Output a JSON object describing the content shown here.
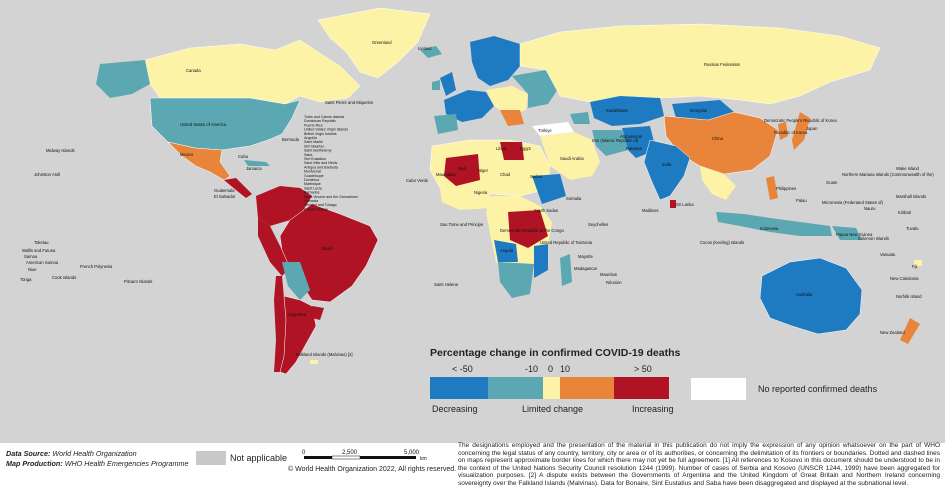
{
  "colors": {
    "decreasing_strong": "#1f7bc1",
    "decreasing": "#5ca8b2",
    "limited": "#fdf3a6",
    "increasing": "#e9853a",
    "increasing_strong": "#b01424",
    "no_reported": "#ffffff",
    "not_applicable": "#c8c8c8",
    "ocean": "#d3d3d3"
  },
  "legend": {
    "title": "Percentage change in confirmed COVID-19 deaths",
    "ticks": [
      "< -50",
      "-10",
      "0",
      "10",
      "> 50"
    ],
    "left_label": "Decreasing",
    "middle_label": "Limited change",
    "right_label": "Increasing",
    "no_reported": "No reported confirmed deaths",
    "not_applicable": "Not applicable"
  },
  "footer": {
    "source_label": "Data Source:",
    "source_value": "World Health Organization",
    "production_label": "Map Production:",
    "production_value": "WHO Health Emergencies Programme",
    "scale_ticks": [
      "0",
      "2,500",
      "5,000"
    ],
    "scale_unit": "km",
    "copyright": "© World Health Organization 2022, All rights reserved.",
    "disclaimer": "The designations employed and the presentation of the material in this publication do not imply the expression of any opinion whatsoever on the part of WHO concerning the legal status of any country, territory, city or area or of its authorities, or concerning the delimitation of its frontiers or boundaries. Dotted and dashed lines on maps represent approximate border lines for which there may not yet be full agreement. [1] All references to Kosovo in this document should be understood to be in the context of the United Nations Security Council resolution 1244 (1999). Number of cases of Serbia and Kosovo (UNSCR 1244, 1999) have been aggregated for visualization purposes. [2] A dispute exists between the Governments of Argentina and the United Kingdom of Great Britain and Northern Ireland concerning sovereignty over the Falkland Islands (Malvinas). Data for Bonaire, Sint Eustatius and Saba have been disaggregated and displayed at the subnational level."
  },
  "places": {
    "greenland": "Greenland",
    "iceland": "Iceland",
    "canada": "Canada",
    "usa": "United States of America",
    "mexico": "Mexico",
    "brazil": "Brazil",
    "argentina": "Argentina",
    "russia": "Russian Federation",
    "china": "China",
    "india": "India",
    "australia": "Australia",
    "kazakhstan": "Kazakhstan",
    "sudan": "Sudan",
    "drc": "Democratic Republic of the Congo",
    "spm": "Saint Pierre and Miquelon",
    "bermuda": "Bermuda",
    "cuba": "Cuba",
    "jamaica": "Jamaica",
    "guatemala": "Guatemala",
    "el_salvador": "El Salvador",
    "midway": "Midway Islands",
    "johnston": "Johnston Atoll",
    "tokelau": "Tokelau",
    "wallis": "Wallis and Futuna",
    "samoa": "Samoa",
    "am_samoa": "American Samoa",
    "niue": "Niue",
    "tonga": "Tonga",
    "cook": "Cook Islands",
    "fr_polynesia": "French Polynesia",
    "pitcairn": "Pitcairn Islands",
    "cabo_verde": "Cabo Verde",
    "st_helena": "Saint Helena",
    "stp": "Sao Tome and Principe",
    "seychelles": "Seychelles",
    "mauritius": "Mauritius",
    "reunion": "Réunion",
    "mayotte": "Mayotte",
    "maldives": "Maldives",
    "sri_lanka": "Sri Lanka",
    "cocos": "Cocos (Keeling) Islands",
    "falkland": "Falkland Islands (Malvinas) [2]",
    "turkiye": "Türkiye",
    "saudi": "Saudi Arabia",
    "japan": "Japan",
    "philippines": "Philippines",
    "palau": "Palau",
    "micronesia": "Micronesia (Federated States of)",
    "marshall": "Marshall Islands",
    "nauru": "Nauru",
    "solomon": "Solomon Islands",
    "vanuatu": "Vanuatu",
    "fiji": "Fiji",
    "new_caledonia": "New Caledonia",
    "norfolk": "Norfolk Island",
    "new_zealand": "New Zealand",
    "wake": "Wake Island",
    "n_mariana": "Northern Mariana Islands (Commonwealth of the)",
    "guam": "Guam",
    "kiribati": "Kiribati",
    "tuvalu": "Tuvalu",
    "png": "Papua New Guinea",
    "korea_dprk": "Democratic People's Republic of Korea",
    "korea_rep": "Republic of Korea",
    "tanzania": "United Republic of Tanzania",
    "south_sudan": "South Sudan",
    "somalia": "Somalia",
    "mali": "Mali",
    "mauritania": "Mauritania",
    "niger": "Niger",
    "chad": "Chad",
    "nigeria": "Nigeria",
    "libya": "Libya",
    "egypt": "Egypt",
    "madagascar": "Madagascar",
    "angola": "Angola",
    "mongolia": "Mongolia",
    "indonesia": "Indonesia",
    "iran": "Iran (Islamic Republic of)",
    "pakistan": "Pakistan",
    "afghanistan": "Afghanistan",
    "caribbean": [
      "Turks and Caicos Islands",
      "Dominican Republic",
      "Puerto Rico",
      "United States Virgin Islands",
      "British Virgin Islands",
      "Anguilla",
      "Saint Martin",
      "Sint Maarten",
      "Saint Barthélemy",
      "Saba",
      "Sint Eustatius",
      "Saint Kitts and Nevis",
      "Antigua and Barbuda",
      "Montserrat",
      "Guadeloupe",
      "Dominica",
      "Martinique",
      "Saint Lucia",
      "Barbados",
      "Saint Vincent and the Grenadines",
      "Grenada",
      "Trinidad and Tobago",
      "French Guiana"
    ]
  }
}
